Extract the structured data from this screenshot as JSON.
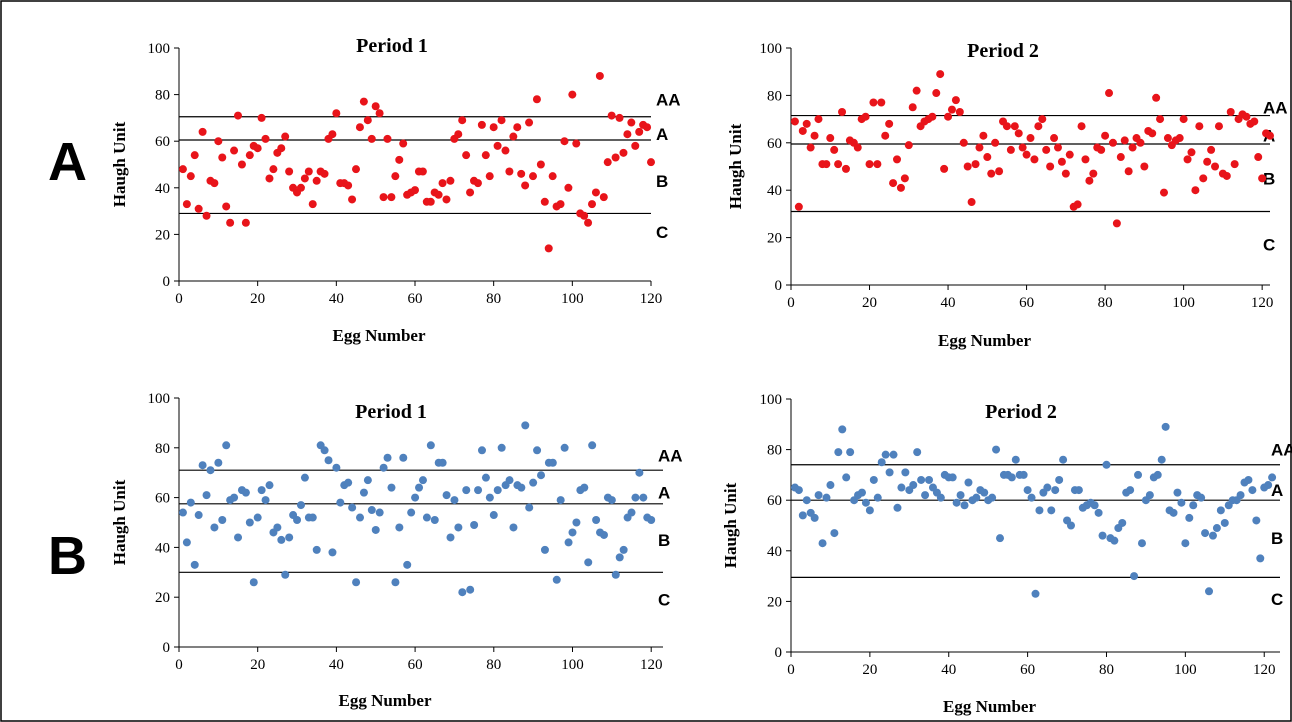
{
  "panel_labels": [
    "A",
    "B"
  ],
  "chart_data": [
    {
      "type": "scatter",
      "title": "Period 1",
      "xlabel": "Egg Number",
      "ylabel": "Haugh Unit",
      "xlim": [
        0,
        120
      ],
      "ylim": [
        0,
        100
      ],
      "xticks": [
        0,
        20,
        40,
        60,
        80,
        100,
        120
      ],
      "yticks": [
        0,
        20,
        40,
        60,
        80,
        100
      ],
      "color": "#e8141a",
      "grade_lines": [
        {
          "y": 70.5
        },
        {
          "y": 60.5
        },
        {
          "y": 29
        }
      ],
      "grade_labels": [
        {
          "label": "AA",
          "y": 78
        },
        {
          "label": "A",
          "y": 63
        },
        {
          "label": "B",
          "y": 43
        },
        {
          "label": "C",
          "y": 21
        }
      ],
      "x": [
        1,
        2,
        3,
        4,
        5,
        6,
        7,
        8,
        9,
        10,
        11,
        12,
        13,
        14,
        15,
        16,
        17,
        18,
        19,
        20,
        21,
        22,
        23,
        24,
        25,
        26,
        27,
        28,
        29,
        30,
        31,
        32,
        33,
        34,
        35,
        36,
        37,
        38,
        39,
        40,
        41,
        42,
        43,
        44,
        45,
        46,
        47,
        48,
        49,
        50,
        51,
        52,
        53,
        54,
        55,
        56,
        57,
        58,
        59,
        60,
        61,
        62,
        63,
        64,
        65,
        66,
        67,
        68,
        69,
        70,
        71,
        72,
        73,
        74,
        75,
        76,
        77,
        78,
        79,
        80,
        81,
        82,
        83,
        84,
        85,
        86,
        87,
        88,
        89,
        90,
        91,
        92,
        93,
        94,
        95,
        96,
        97,
        98,
        99,
        100,
        101,
        102,
        103,
        104,
        105,
        106,
        107,
        108,
        109,
        110,
        111,
        112,
        113,
        114,
        115,
        116,
        117,
        118,
        119,
        120
      ],
      "y": [
        48,
        33,
        45,
        54,
        31,
        64,
        28,
        43,
        42,
        60,
        53,
        32,
        25,
        56,
        71,
        50,
        25,
        54,
        58,
        57,
        70,
        61,
        44,
        48,
        55,
        57,
        62,
        47,
        40,
        38,
        40,
        44,
        47,
        33,
        43,
        47,
        46,
        61,
        63,
        72,
        42,
        42,
        41,
        35,
        48,
        66,
        77,
        69,
        61,
        75,
        72,
        36,
        61,
        36,
        45,
        52,
        59,
        37,
        38,
        39,
        47,
        47,
        34,
        34,
        38,
        37,
        42,
        35,
        43,
        61,
        63,
        69,
        54,
        38,
        43,
        42,
        67,
        54,
        45,
        66,
        58,
        69,
        56,
        47,
        62,
        66,
        46,
        41,
        68,
        45,
        78,
        50,
        34,
        14,
        45,
        32,
        33,
        60,
        40,
        80,
        59,
        29,
        28,
        25,
        33,
        38,
        88,
        36,
        51,
        71,
        53,
        70,
        55,
        63,
        68,
        58,
        64,
        67,
        66,
        51
      ]
    },
    {
      "type": "scatter",
      "title": "Period 2",
      "xlabel": "Egg Number",
      "ylabel": "Haugh Unit",
      "xlim": [
        0,
        122
      ],
      "ylim": [
        0,
        100
      ],
      "xticks": [
        0,
        20,
        40,
        60,
        80,
        100,
        120
      ],
      "yticks": [
        0,
        20,
        40,
        60,
        80,
        100
      ],
      "color": "#e8141a",
      "grade_lines": [
        {
          "y": 71.5
        },
        {
          "y": 59.5
        },
        {
          "y": 31
        }
      ],
      "grade_labels": [
        {
          "label": "AA",
          "y": 75
        },
        {
          "label": "A",
          "y": 63
        },
        {
          "label": "B",
          "y": 45
        },
        {
          "label": "C",
          "y": 17
        }
      ],
      "x": [
        1,
        2,
        3,
        4,
        5,
        6,
        7,
        8,
        9,
        10,
        11,
        12,
        13,
        14,
        15,
        16,
        17,
        18,
        19,
        20,
        21,
        22,
        23,
        24,
        25,
        26,
        27,
        28,
        29,
        30,
        31,
        32,
        33,
        34,
        35,
        36,
        37,
        38,
        39,
        40,
        41,
        42,
        43,
        44,
        45,
        46,
        47,
        48,
        49,
        50,
        51,
        52,
        53,
        54,
        55,
        56,
        57,
        58,
        59,
        60,
        61,
        62,
        63,
        64,
        65,
        66,
        67,
        68,
        69,
        70,
        71,
        72,
        73,
        74,
        75,
        76,
        77,
        78,
        79,
        80,
        81,
        82,
        83,
        84,
        85,
        86,
        87,
        88,
        89,
        90,
        91,
        92,
        93,
        94,
        95,
        96,
        97,
        98,
        99,
        100,
        101,
        102,
        103,
        104,
        105,
        106,
        107,
        108,
        109,
        110,
        111,
        112,
        113,
        114,
        115,
        116,
        117,
        118,
        119,
        120,
        121,
        122
      ],
      "y": [
        69,
        33,
        65,
        68,
        58,
        63,
        70,
        51,
        51,
        62,
        57,
        51,
        73,
        49,
        61,
        60,
        58,
        70,
        71,
        51,
        77,
        51,
        77,
        63,
        68,
        43,
        53,
        41,
        45,
        59,
        75,
        82,
        67,
        69,
        70,
        71,
        81,
        89,
        49,
        71,
        74,
        78,
        73,
        60,
        50,
        35,
        51,
        58,
        63,
        54,
        47,
        60,
        48,
        69,
        67,
        57,
        67,
        64,
        58,
        55,
        62,
        53,
        67,
        70,
        57,
        50,
        62,
        58,
        52,
        47,
        55,
        33,
        34,
        67,
        53,
        44,
        47,
        58,
        57,
        63,
        81,
        60,
        26,
        54,
        61,
        48,
        58,
        62,
        60,
        50,
        65,
        64,
        79,
        70,
        39,
        62,
        59,
        61,
        62,
        70,
        53,
        56,
        40,
        67,
        45,
        52,
        57,
        50,
        67,
        47,
        46,
        73,
        51,
        70,
        72,
        71,
        68,
        69,
        54,
        45,
        64,
        63
      ]
    },
    {
      "type": "scatter",
      "title": "Period 1",
      "xlabel": "Egg Number",
      "ylabel": "Haugh Unit",
      "xlim": [
        0,
        123
      ],
      "ylim": [
        0,
        100
      ],
      "xticks": [
        0,
        20,
        40,
        60,
        80,
        100,
        120
      ],
      "yticks": [
        0,
        20,
        40,
        60,
        80,
        100
      ],
      "color": "#4f81bd",
      "grade_lines": [
        {
          "y": 71
        },
        {
          "y": 57.5
        },
        {
          "y": 30
        }
      ],
      "grade_labels": [
        {
          "label": "AA",
          "y": 77
        },
        {
          "label": "A",
          "y": 62
        },
        {
          "label": "B",
          "y": 43
        },
        {
          "label": "C",
          "y": 19
        }
      ],
      "x": [
        1,
        2,
        3,
        4,
        5,
        6,
        7,
        8,
        9,
        10,
        11,
        12,
        13,
        14,
        15,
        16,
        17,
        18,
        19,
        20,
        21,
        22,
        23,
        24,
        25,
        26,
        27,
        28,
        29,
        30,
        31,
        32,
        33,
        34,
        35,
        36,
        37,
        38,
        39,
        40,
        41,
        42,
        43,
        44,
        45,
        46,
        47,
        48,
        49,
        50,
        51,
        52,
        53,
        54,
        55,
        56,
        57,
        58,
        59,
        60,
        61,
        62,
        63,
        64,
        65,
        66,
        67,
        68,
        69,
        70,
        71,
        72,
        73,
        74,
        75,
        76,
        77,
        78,
        79,
        80,
        81,
        82,
        83,
        84,
        85,
        86,
        87,
        88,
        89,
        90,
        91,
        92,
        93,
        94,
        95,
        96,
        97,
        98,
        99,
        100,
        101,
        102,
        103,
        104,
        105,
        106,
        107,
        108,
        109,
        110,
        111,
        112,
        113,
        114,
        115,
        116,
        117,
        118,
        119,
        120
      ],
      "y": [
        54,
        42,
        58,
        33,
        53,
        73,
        61,
        71,
        48,
        74,
        51,
        81,
        59,
        60,
        44,
        63,
        62,
        50,
        26,
        52,
        63,
        59,
        65,
        46,
        48,
        43,
        29,
        44,
        53,
        51,
        57,
        68,
        52,
        52,
        39,
        81,
        79,
        75,
        38,
        72,
        58,
        65,
        66,
        56,
        26,
        52,
        62,
        67,
        55,
        47,
        54,
        72,
        76,
        64,
        26,
        48,
        76,
        33,
        54,
        60,
        64,
        67,
        52,
        81,
        51,
        74,
        74,
        61,
        44,
        59,
        48,
        22,
        63,
        23,
        49,
        63,
        79,
        68,
        60,
        53,
        63,
        80,
        65,
        67,
        48,
        65,
        64,
        89,
        56,
        66,
        79,
        69,
        39,
        74,
        74,
        27,
        59,
        80,
        42,
        46,
        50,
        63,
        64,
        34,
        81,
        51,
        46,
        45,
        60,
        59,
        29,
        36,
        39,
        52,
        54,
        60,
        70,
        60,
        52,
        51
      ]
    },
    {
      "type": "scatter",
      "title": "Period 2",
      "xlabel": "Egg Number",
      "ylabel": "Haugh Unit",
      "xlim": [
        0,
        124
      ],
      "ylim": [
        0,
        100
      ],
      "xticks": [
        0,
        20,
        40,
        60,
        80,
        100,
        120
      ],
      "yticks": [
        0,
        20,
        40,
        60,
        80,
        100
      ],
      "color": "#4f81bd",
      "grade_lines": [
        {
          "y": 74
        },
        {
          "y": 60
        },
        {
          "y": 29.5
        }
      ],
      "grade_labels": [
        {
          "label": "AA",
          "y": 80
        },
        {
          "label": "A",
          "y": 64
        },
        {
          "label": "B",
          "y": 45
        },
        {
          "label": "C",
          "y": 21
        }
      ],
      "x": [
        1,
        2,
        3,
        4,
        5,
        6,
        7,
        8,
        9,
        10,
        11,
        12,
        13,
        14,
        15,
        16,
        17,
        18,
        19,
        20,
        21,
        22,
        23,
        24,
        25,
        26,
        27,
        28,
        29,
        30,
        31,
        32,
        33,
        34,
        35,
        36,
        37,
        38,
        39,
        40,
        41,
        42,
        43,
        44,
        45,
        46,
        47,
        48,
        49,
        50,
        51,
        52,
        53,
        54,
        55,
        56,
        57,
        58,
        59,
        60,
        61,
        62,
        63,
        64,
        65,
        66,
        67,
        68,
        69,
        70,
        71,
        72,
        73,
        74,
        75,
        76,
        77,
        78,
        79,
        80,
        81,
        82,
        83,
        84,
        85,
        86,
        87,
        88,
        89,
        90,
        91,
        92,
        93,
        94,
        95,
        96,
        97,
        98,
        99,
        100,
        101,
        102,
        103,
        104,
        105,
        106,
        107,
        108,
        109,
        110,
        111,
        112,
        113,
        114,
        115,
        116,
        117,
        118,
        119,
        120,
        121,
        122
      ],
      "y": [
        65,
        64,
        54,
        60,
        55,
        53,
        62,
        43,
        61,
        66,
        47,
        79,
        88,
        69,
        79,
        60,
        62,
        63,
        59,
        56,
        68,
        61,
        75,
        78,
        71,
        78,
        57,
        65,
        71,
        64,
        66,
        79,
        68,
        62,
        68,
        65,
        63,
        61,
        70,
        69,
        69,
        59,
        62,
        58,
        67,
        60,
        61,
        64,
        63,
        60,
        61,
        80,
        45,
        70,
        70,
        69,
        76,
        70,
        70,
        64,
        61,
        23,
        56,
        63,
        65,
        56,
        64,
        68,
        76,
        52,
        50,
        64,
        64,
        57,
        58,
        59,
        58,
        55,
        46,
        74,
        45,
        44,
        49,
        51,
        63,
        64,
        30,
        70,
        43,
        60,
        62,
        69,
        70,
        76,
        89,
        56,
        55,
        63,
        59,
        43,
        53,
        58,
        62,
        61,
        47,
        24,
        46,
        49,
        56,
        51,
        58,
        60,
        60,
        62,
        67,
        68,
        64,
        52,
        37,
        65,
        66,
        69
      ]
    }
  ]
}
